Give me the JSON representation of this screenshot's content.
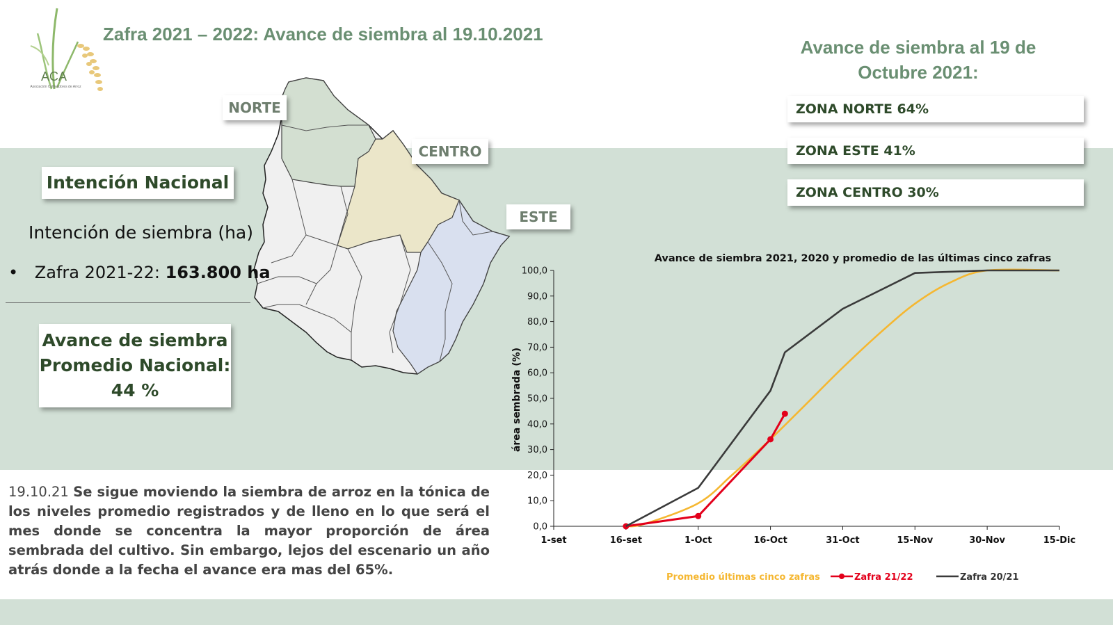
{
  "title": "Zafra 2021 – 2022: Avance de siembra al 19.10.2021",
  "logo": {
    "text": "ACA",
    "subtitle": "Asociación Cultivadores de Arroz"
  },
  "right_title": [
    "Avance de siembra al 19 de",
    "Octubre 2021:"
  ],
  "zones": [
    {
      "label": "ZONA NORTE  64%"
    },
    {
      "label": "ZONA ESTE  41%"
    },
    {
      "label": "ZONA CENTRO 30%"
    }
  ],
  "map_labels": {
    "norte": "NORTE",
    "centro": "CENTRO",
    "este": "ESTE"
  },
  "map_colors": {
    "norte": "#d3dfd1",
    "centro": "#ebe6c9",
    "este": "#d9e0ef",
    "other": "#f0f0f0"
  },
  "left": {
    "intencion_box": "Intención Nacional",
    "intencion_label": "Intención de siembra (ha)",
    "bullet": "•",
    "zafra_prefix": "Zafra 2021-22: ",
    "zafra_value": "163.800 ha",
    "avance_box": [
      "Avance de siembra",
      "Promedio Nacional:",
      "44 %"
    ]
  },
  "body": {
    "date": "19.10.21",
    "text": "Se sigue moviendo la siembra de arroz en la tónica de los niveles promedio registrados y de lleno en lo que será el mes donde se concentra la mayor proporción de área sembrada del cultivo. Sin embargo, lejos del escenario un año atrás donde a la fecha el avance era mas del 65%."
  },
  "colors": {
    "band": "#d2e0d6",
    "title_green": "#6a8f72",
    "dark_green": "#2e4a2a"
  },
  "chart_data": {
    "type": "line",
    "title": "Avance de siembra 2021, 2020 y promedio de las últimas cinco  zafras",
    "ylabel": "área sembrada (%)",
    "xlabel": "",
    "x_ticks": [
      "1-set",
      "16-set",
      "1-Oct",
      "16-Oct",
      "31-Oct",
      "15-Nov",
      "30-Nov",
      "15-Dic"
    ],
    "xlim": [
      "1-set",
      "15-Dic"
    ],
    "ylim": [
      0,
      100
    ],
    "y_ticks": [
      "0,0",
      "10,0",
      "20,0",
      "30,0",
      "40,0",
      "50,0",
      "60,0",
      "70,0",
      "80,0",
      "90,0",
      "100,0"
    ],
    "legend_position": "bottom",
    "series": [
      {
        "name": "Promedio últimas cinco zafras",
        "color": "#f5b731",
        "smooth": true,
        "x": [
          "16-set",
          "20-set",
          "1-Oct",
          "8-Oct",
          "16-Oct",
          "23-Oct",
          "31-Oct",
          "8-Nov",
          "15-Nov",
          "22-Nov",
          "30-Nov",
          "15-Dic"
        ],
        "y": [
          0,
          1,
          9,
          20,
          34,
          47,
          62,
          76,
          87,
          95,
          100,
          100
        ]
      },
      {
        "name": "Zafra 21/22",
        "color": "#e3001b",
        "markers": true,
        "x": [
          "16-set",
          "1-Oct",
          "16-Oct",
          "19-Oct"
        ],
        "y": [
          0,
          4,
          34,
          44
        ]
      },
      {
        "name": "Zafra 20/21",
        "color": "#3a3a3a",
        "x": [
          "16-set",
          "1-Oct",
          "16-Oct",
          "19-Oct",
          "31-Oct",
          "15-Nov",
          "30-Nov",
          "15-Dic"
        ],
        "y": [
          0,
          15,
          53,
          68,
          85,
          99,
          100,
          100
        ]
      }
    ]
  }
}
